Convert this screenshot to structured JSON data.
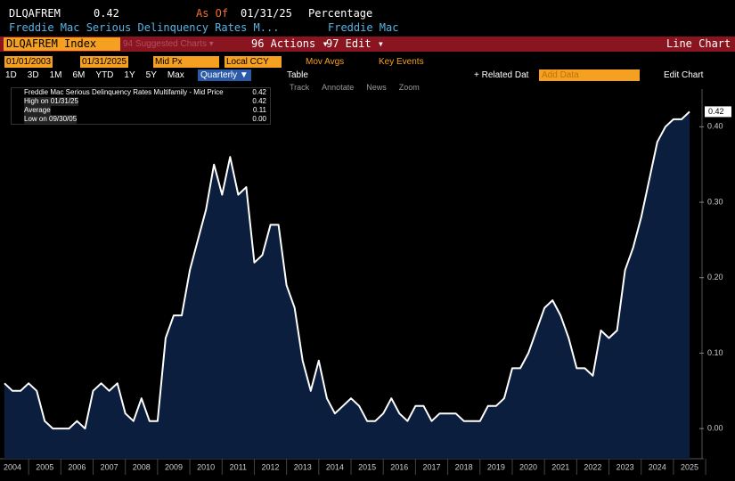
{
  "header": {
    "ticker": "DLQAFREM",
    "last": "0.42",
    "as_of_label": "As Of",
    "as_of_date": "01/31/25",
    "units": "Percentage",
    "description": "Freddie Mac Serious Delinquency Rates M...",
    "source": "Freddie Mac"
  },
  "toolbar": {
    "security": "DLQAFREM Index",
    "suggested": "94 Suggested Charts ▾",
    "actions": "96 Actions ▾",
    "edit": "97 Edit ▾",
    "view": "Line Chart"
  },
  "controls": {
    "start_date": "01/01/2003",
    "end_date": "01/31/2025",
    "price": "Mid Px",
    "currency": "Local CCY",
    "mov_avgs": "Mov Avgs",
    "key_events": "Key Events",
    "ranges": [
      "1D",
      "3D",
      "1M",
      "6M",
      "YTD",
      "1Y",
      "5Y",
      "Max"
    ],
    "period": "Quarterly ▼",
    "table": "Table",
    "related": "+ Related Dat",
    "add_data": "Add Data",
    "edit_chart": "Edit Chart"
  },
  "tools": [
    "Track",
    "Annotate",
    "News",
    "Zoom"
  ],
  "legend": {
    "rows": [
      [
        "Freddie Mac Serious Delinquency Rates Multifamily - Mid Price",
        "0.42"
      ],
      [
        "High on 01/31/25",
        "0.42"
      ],
      [
        "Average",
        "0.11"
      ],
      [
        "Low on 09/30/05",
        "0.00"
      ]
    ]
  },
  "chart_data": {
    "type": "area",
    "color": "#ffffff",
    "fill": "#0b1e3d",
    "categories": [
      null,
      "2004",
      null,
      null,
      null,
      "2005",
      null,
      null,
      null,
      "2006",
      null,
      null,
      null,
      "2007",
      null,
      null,
      null,
      "2008",
      null,
      null,
      null,
      "2009",
      null,
      null,
      null,
      "2010",
      null,
      null,
      null,
      "2011",
      null,
      null,
      null,
      "2012",
      null,
      null,
      null,
      "2013",
      null,
      null,
      null,
      "2014",
      null,
      null,
      null,
      "2015",
      null,
      null,
      null,
      "2016",
      null,
      null,
      null,
      "2017",
      null,
      null,
      null,
      "2018",
      null,
      null,
      null,
      "2019",
      null,
      null,
      null,
      "2020",
      null,
      null,
      null,
      "2021",
      null,
      null,
      null,
      "2022",
      null,
      null,
      null,
      "2023",
      null,
      null,
      null,
      "2024",
      null,
      null,
      null,
      "2025"
    ],
    "values": [
      0.06,
      0.05,
      0.05,
      0.06,
      0.05,
      0.01,
      0.0,
      0.0,
      0.0,
      0.01,
      0.0,
      0.05,
      0.06,
      0.05,
      0.06,
      0.02,
      0.01,
      0.04,
      0.01,
      0.01,
      0.12,
      0.15,
      0.15,
      0.21,
      0.25,
      0.29,
      0.35,
      0.31,
      0.36,
      0.31,
      0.32,
      0.22,
      0.23,
      0.27,
      0.27,
      0.19,
      0.16,
      0.09,
      0.05,
      0.09,
      0.04,
      0.02,
      0.03,
      0.04,
      0.03,
      0.01,
      0.01,
      0.02,
      0.04,
      0.02,
      0.01,
      0.03,
      0.03,
      0.01,
      0.02,
      0.02,
      0.02,
      0.01,
      0.01,
      0.01,
      0.03,
      0.03,
      0.04,
      0.08,
      0.08,
      0.1,
      0.13,
      0.16,
      0.17,
      0.15,
      0.12,
      0.08,
      0.08,
      0.07,
      0.13,
      0.12,
      0.13,
      0.21,
      0.24,
      0.28,
      0.33,
      0.38,
      0.4,
      0.41,
      0.41,
      0.42
    ],
    "ylim": [
      -0.04,
      0.45
    ],
    "yticks": [
      {
        "value": 0,
        "label": "0.00"
      },
      {
        "value": 0.1,
        "label": "0.10"
      },
      {
        "value": 0.2,
        "label": "0.20"
      },
      {
        "value": 0.3,
        "label": "0.30"
      },
      {
        "value": 0.4,
        "label": "0.40"
      }
    ],
    "grid": false
  }
}
